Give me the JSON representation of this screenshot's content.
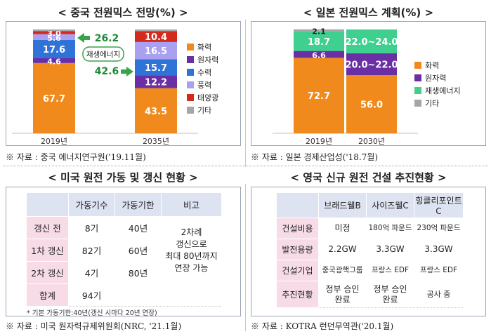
{
  "china": {
    "title": "< 중국 전원믹스 전망(%) >",
    "source": "※ 자료 : 중국 에너지연구원('19.11월)",
    "note_label": "재생에너지",
    "note_values": [
      "26.2",
      "42.6"
    ]
  },
  "japan": {
    "title": "< 일본 전원믹스 계획(%) >",
    "source": "※ 자료 : 일본 경제산업성('18.7월)"
  },
  "us": {
    "title": "< 미국 원전 가동 및 갱신 현황 >",
    "source": "※ 자료 : 미국 원자력규제위원회(NRC, '21.1월)",
    "headers": [
      "가동기수",
      "가동기한",
      "비고"
    ],
    "rows": [
      {
        "label": "갱신 전",
        "count": "8기",
        "term": "40년"
      },
      {
        "label": "1차 갱신",
        "count": "82기",
        "term": "60년"
      },
      {
        "label": "2차 갱신",
        "count": "4기",
        "term": "80년"
      },
      {
        "label": "합계",
        "count": "94기",
        "term": ""
      }
    ],
    "note_lines": [
      "2차례",
      "갱신으로",
      "최대 80년까지",
      "연장 가능"
    ],
    "footnote": "* 기본 가동기한:40년(갱신 시마다 20년 연장)"
  },
  "uk": {
    "title": "< 영국 신규 원전 건설 추진현황 >",
    "source": "※ 자료 : KOTRA 런던무역관('20.1월)",
    "headers": [
      "브래드웰B",
      "사이즈웰C",
      "힝클리포인트C"
    ],
    "rows": [
      {
        "label": "건설비용",
        "cells": [
          "미정",
          "180억 파운드",
          "230억 파운드"
        ]
      },
      {
        "label": "발전용량",
        "cells": [
          "2.2GW",
          "3.3GW",
          "3.3GW"
        ]
      },
      {
        "label": "건설기업",
        "cells": [
          "중국광핵그룹",
          "프랑스 EDF",
          "프랑스 EDF"
        ]
      },
      {
        "label": "추진현황",
        "cells": [
          [
            "정부 승인",
            "완료"
          ],
          [
            "정부 승인",
            "완료"
          ],
          "공사 중"
        ]
      }
    ]
  },
  "chart_data": [
    {
      "type": "bar",
      "stacked": true,
      "title": "< 중국 전원믹스 전망(%) >",
      "categories": [
        "2019년",
        "2035년"
      ],
      "ylim": [
        0,
        100
      ],
      "series": [
        {
          "name": "화력",
          "color": "#f08a1c",
          "values": [
            67.7,
            43.5
          ]
        },
        {
          "name": "원자력",
          "color": "#6a2fa5",
          "values": [
            4.6,
            12.2
          ]
        },
        {
          "name": "수력",
          "color": "#2f73d8",
          "values": [
            17.6,
            15.7
          ]
        },
        {
          "name": "풍력",
          "color": "#a9a0f0",
          "values": [
            5.6,
            16.5
          ]
        },
        {
          "name": "태양광",
          "color": "#d42a1e",
          "values": [
            3.0,
            10.4
          ]
        },
        {
          "name": "기타",
          "color": "#a6a6a6",
          "values": [
            1.5,
            1.7
          ]
        }
      ],
      "labels": [
        [
          "67.7",
          "43.5"
        ],
        [
          "4.6",
          "12.2"
        ],
        [
          "17.6",
          "15.7"
        ],
        [
          "5.6",
          "16.5"
        ],
        [
          "3.0",
          "10.4"
        ],
        [
          "",
          ""
        ]
      ],
      "legend": "right"
    },
    {
      "type": "bar",
      "stacked": true,
      "title": "< 일본 전원믹스 계획(%) >",
      "categories": [
        "2019년",
        "2030년"
      ],
      "ylim": [
        0,
        100
      ],
      "series": [
        {
          "name": "화력",
          "color": "#f08a1c",
          "values": [
            72.7,
            56.0
          ]
        },
        {
          "name": "원자력",
          "color": "#6a2fa5",
          "values": [
            6.6,
            21.0
          ]
        },
        {
          "name": "재생에너지",
          "color": "#3fcf8e",
          "values": [
            18.7,
            23.0
          ]
        },
        {
          "name": "기타",
          "color": "#a6a6a6",
          "values": [
            2.1,
            0
          ]
        }
      ],
      "labels": [
        [
          "72.7",
          "56.0"
        ],
        [
          "6.6",
          "20.0~22.0"
        ],
        [
          "18.7",
          "22.0~24.0"
        ],
        [
          "2.1",
          ""
        ]
      ],
      "legend": "right"
    }
  ]
}
